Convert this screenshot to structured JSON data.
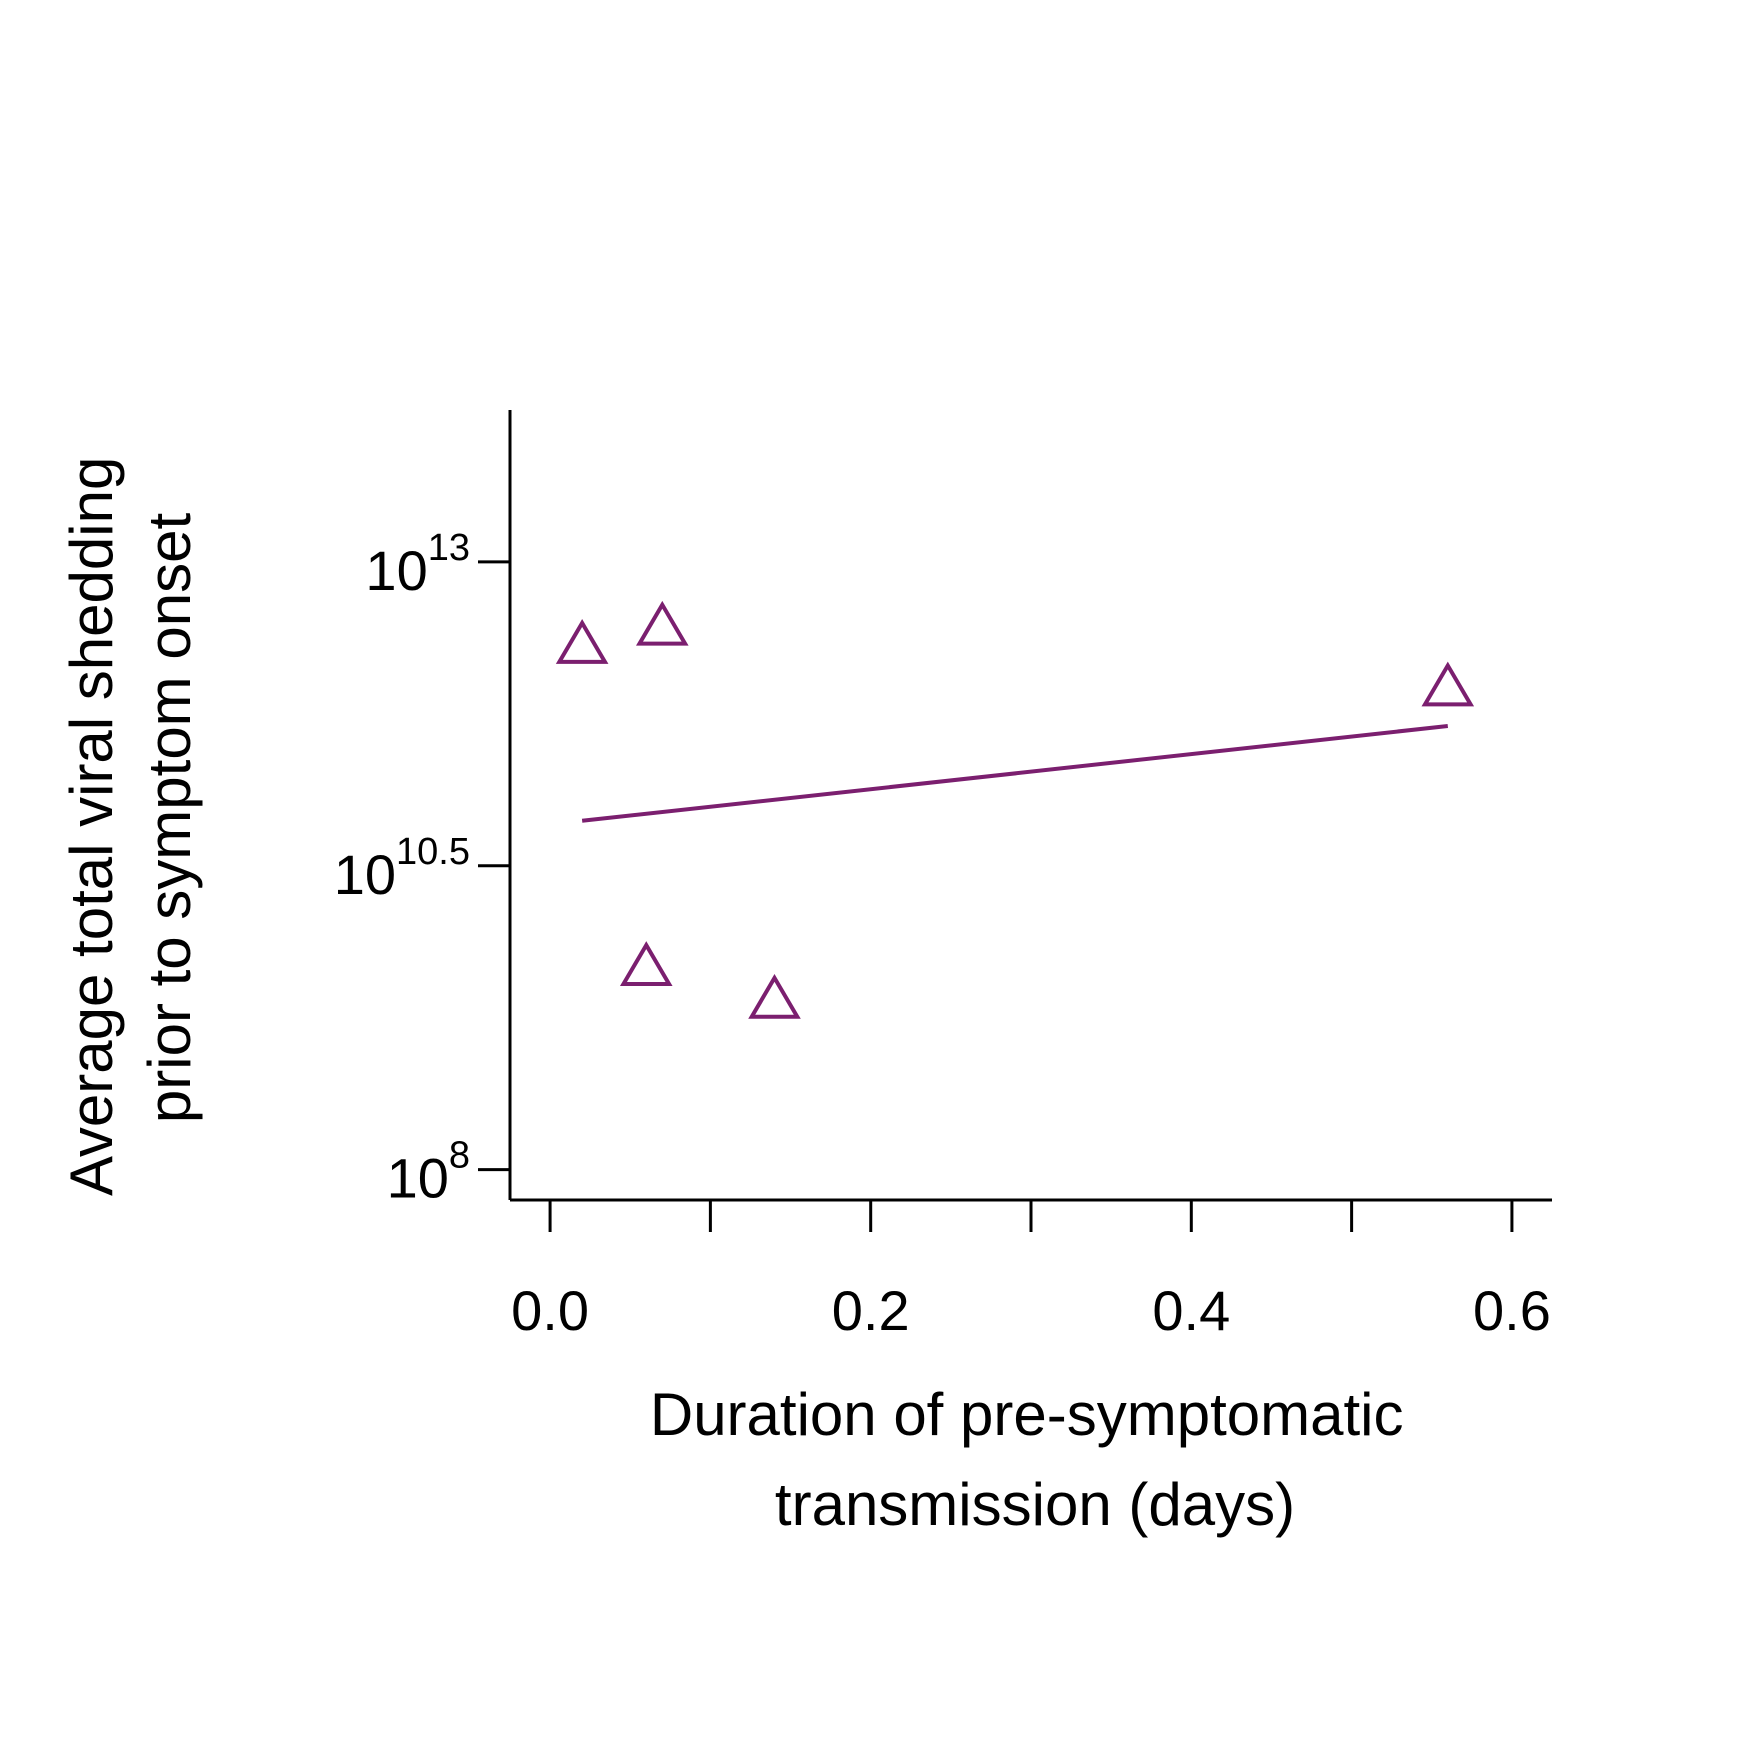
{
  "chart_data": {
    "type": "scatter",
    "xlabel_lines": [
      "Duration of pre-symptomatic",
      "transmission (days)"
    ],
    "ylabel_lines": [
      "Average total viral shedding",
      "prior to symptom onset"
    ],
    "x_ticks": [
      {
        "value": 0.0,
        "label": "0.0"
      },
      {
        "value": 0.1,
        "label": ""
      },
      {
        "value": 0.2,
        "label": "0.2"
      },
      {
        "value": 0.3,
        "label": ""
      },
      {
        "value": 0.4,
        "label": "0.4"
      },
      {
        "value": 0.5,
        "label": ""
      },
      {
        "value": 0.6,
        "label": "0.6"
      }
    ],
    "y_ticks": [
      {
        "value": 8,
        "base": "10",
        "exp": "8"
      },
      {
        "value": 10.5,
        "base": "10",
        "exp": "10.5"
      },
      {
        "value": 13,
        "base": "10",
        "exp": "13"
      }
    ],
    "y_scale": "log10",
    "xlim": [
      -0.025,
      0.625
    ],
    "ylim": [
      7.75,
      14.25
    ],
    "color": "#7b1f6f",
    "marker": "open-triangle",
    "points": [
      {
        "x": 0.02,
        "y": 12.3
      },
      {
        "x": 0.07,
        "y": 12.45
      },
      {
        "x": 0.06,
        "y": 9.65
      },
      {
        "x": 0.14,
        "y": 9.38
      },
      {
        "x": 0.56,
        "y": 11.95
      }
    ],
    "fit_line": {
      "x": [
        0.02,
        0.56
      ],
      "y": [
        10.87,
        11.65
      ]
    }
  }
}
